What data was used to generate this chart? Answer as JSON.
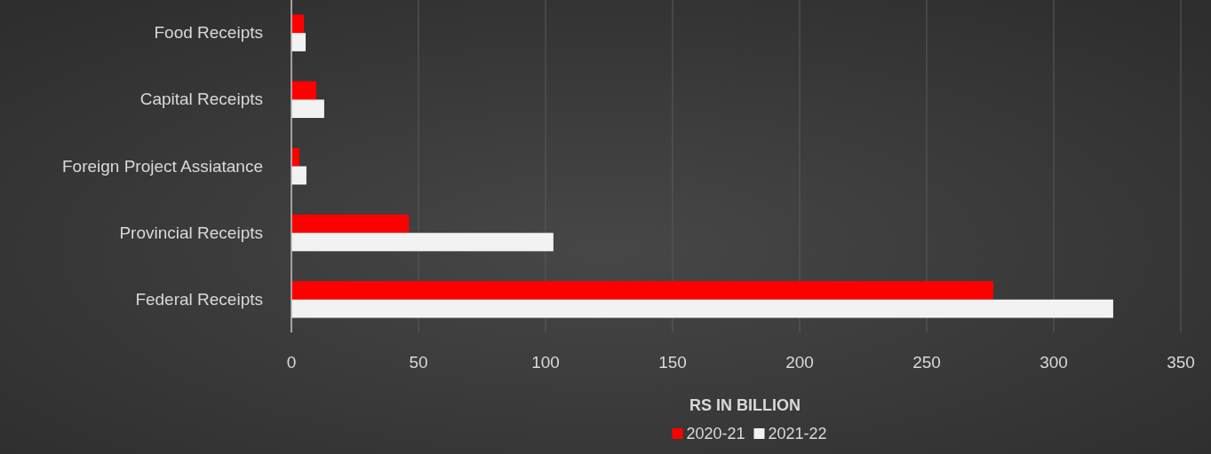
{
  "chart_data": {
    "type": "bar",
    "orientation": "horizontal",
    "xlabel": "RS IN BILLION",
    "categories": [
      "Food Receipts",
      "Capital Receipts",
      "Foreign Project Assiatance",
      "Provincial Receipts",
      "Federal Receipts"
    ],
    "series": [
      {
        "name": "2020-21",
        "color": "#ff0000",
        "values": [
          4.9,
          9.8,
          3.1,
          46.2,
          276.2
        ]
      },
      {
        "name": "2021-22",
        "color": "#f2f2f2",
        "values": [
          5.6,
          12.9,
          5.9,
          103.1,
          323.4
        ]
      }
    ],
    "xlim": [
      0,
      350
    ],
    "xticks": [
      0,
      50,
      100,
      150,
      200,
      250,
      300,
      350
    ],
    "grid": "x",
    "legend": "bottom"
  }
}
